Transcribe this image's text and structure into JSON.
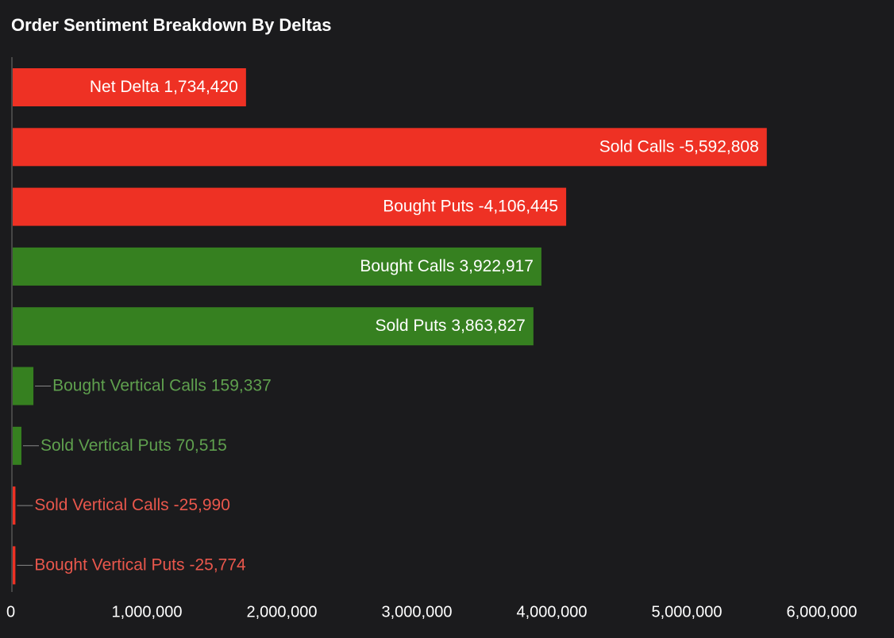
{
  "chart_data": {
    "type": "bar",
    "orientation": "horizontal",
    "title": "Order Sentiment Breakdown By Deltas",
    "categories": [
      "Net Delta",
      "Sold Calls",
      "Bought Puts",
      "Bought Calls",
      "Sold Puts",
      "Bought Vertical Calls",
      "Sold Vertical Puts",
      "Sold Vertical Calls",
      "Bought Vertical Puts"
    ],
    "values": [
      1734420,
      -5592808,
      -4106445,
      3922917,
      3863827,
      159337,
      70515,
      -25990,
      -25774
    ],
    "value_labels": [
      "1,734,420",
      "-5,592,808",
      "-4,106,445",
      "3,922,917",
      "3,863,827",
      "159,337",
      "70,515",
      "-25,990",
      "-25,774"
    ],
    "colors": [
      "#ee3124",
      "#ee3124",
      "#ee3124",
      "#368020",
      "#368020",
      "#368020",
      "#368020",
      "#ee3124",
      "#ee3124"
    ],
    "xlim": [
      0,
      6000000
    ],
    "xticks": [
      0,
      {
        "value": 1000000,
        "label": "1,000,000"
      },
      {
        "value": 2000000,
        "label": "2,000,000"
      },
      {
        "value": 3000000,
        "label": "3,000,000"
      },
      {
        "value": 4000000,
        "label": "4,000,000"
      },
      {
        "value": 5000000,
        "label": "5,000,000"
      },
      {
        "value": 6000000,
        "label": "6,000,000"
      }
    ],
    "grid": false
  }
}
